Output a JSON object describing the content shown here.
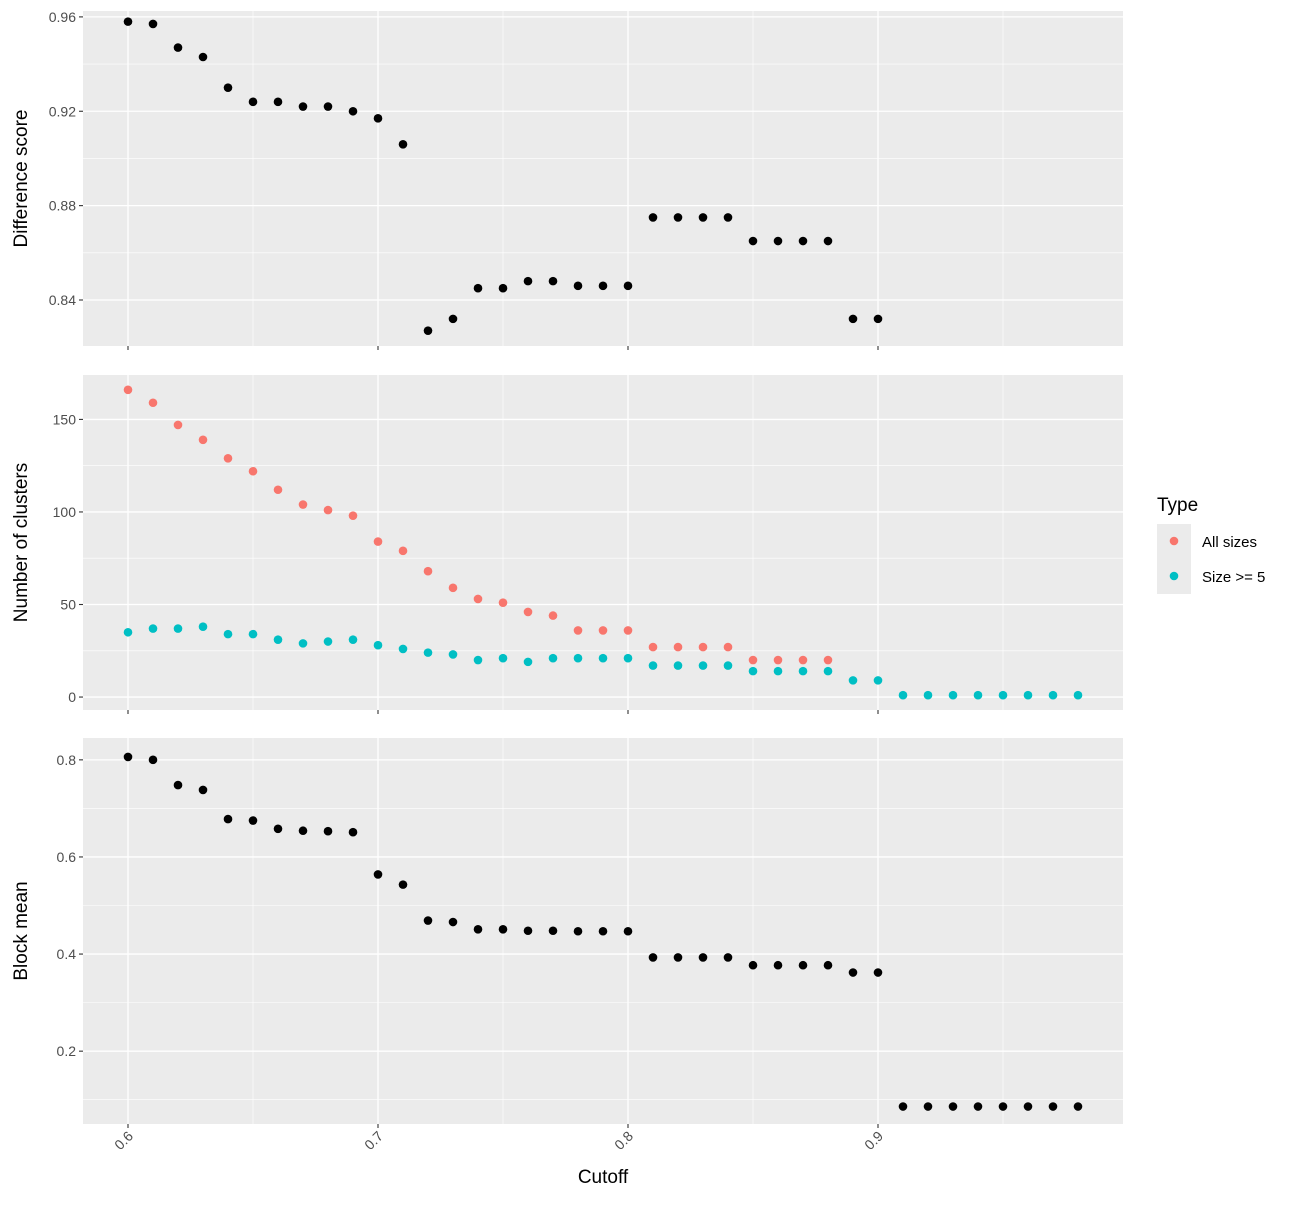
{
  "chart_data": {
    "type": "scatter",
    "xlabel": "Cutoff",
    "x_ticks": [
      "0.6",
      "0.7",
      "0.8",
      "0.9"
    ],
    "xlim": [
      0.582,
      0.998
    ],
    "legend": {
      "title": "Type",
      "position": "right",
      "entries": [
        {
          "name": "All sizes",
          "color": "#F8766D"
        },
        {
          "name": "Size >= 5",
          "color": "#00BFC4"
        }
      ]
    },
    "panels": [
      {
        "ylabel": "Difference score",
        "ylim": [
          0.8205,
          0.9625
        ],
        "y_ticks": [
          {
            "value": 0.84,
            "label": "0.84"
          },
          {
            "value": 0.88,
            "label": "0.88"
          },
          {
            "value": 0.92,
            "label": "0.92"
          },
          {
            "value": 0.96,
            "label": "0.96"
          }
        ],
        "series": [
          {
            "color": "#000000",
            "x": [
              0.6,
              0.61,
              0.62,
              0.63,
              0.64,
              0.65,
              0.66,
              0.67,
              0.68,
              0.69,
              0.7,
              0.71,
              0.72,
              0.73,
              0.74,
              0.75,
              0.76,
              0.77,
              0.78,
              0.79,
              0.8,
              0.81,
              0.82,
              0.83,
              0.84,
              0.85,
              0.86,
              0.87,
              0.88,
              0.89,
              0.9
            ],
            "y": [
              0.958,
              0.957,
              0.947,
              0.943,
              0.93,
              0.924,
              0.924,
              0.922,
              0.922,
              0.92,
              0.917,
              0.906,
              0.827,
              0.832,
              0.845,
              0.845,
              0.848,
              0.848,
              0.846,
              0.846,
              0.846,
              0.875,
              0.875,
              0.875,
              0.875,
              0.865,
              0.865,
              0.865,
              0.865,
              0.832,
              0.832
            ]
          }
        ]
      },
      {
        "ylabel": "Number of clusters",
        "ylim": [
          -7,
          174
        ],
        "y_ticks": [
          {
            "value": 0,
            "label": "0"
          },
          {
            "value": 50,
            "label": "50"
          },
          {
            "value": 100,
            "label": "100"
          },
          {
            "value": 150,
            "label": "150"
          }
        ],
        "series": [
          {
            "name": "All sizes",
            "color": "#F8766D",
            "x": [
              0.6,
              0.61,
              0.62,
              0.63,
              0.64,
              0.65,
              0.66,
              0.67,
              0.68,
              0.69,
              0.7,
              0.71,
              0.72,
              0.73,
              0.74,
              0.75,
              0.76,
              0.77,
              0.78,
              0.79,
              0.8,
              0.81,
              0.82,
              0.83,
              0.84,
              0.85,
              0.86,
              0.87,
              0.88
            ],
            "y": [
              166,
              159,
              147,
              139,
              129,
              122,
              112,
              104,
              101,
              98,
              84,
              79,
              68,
              59,
              53,
              51,
              46,
              44,
              36,
              36,
              36,
              27,
              27,
              27,
              27,
              20,
              20,
              20,
              20
            ]
          },
          {
            "name": "Size >= 5",
            "color": "#00BFC4",
            "x": [
              0.6,
              0.61,
              0.62,
              0.63,
              0.64,
              0.65,
              0.66,
              0.67,
              0.68,
              0.69,
              0.7,
              0.71,
              0.72,
              0.73,
              0.74,
              0.75,
              0.76,
              0.77,
              0.78,
              0.79,
              0.8,
              0.81,
              0.82,
              0.83,
              0.84,
              0.85,
              0.86,
              0.87,
              0.88,
              0.89,
              0.9,
              0.91,
              0.92,
              0.93,
              0.94,
              0.95,
              0.96,
              0.97,
              0.98
            ],
            "y": [
              35,
              37,
              37,
              38,
              34,
              34,
              31,
              29,
              30,
              31,
              28,
              26,
              24,
              23,
              20,
              21,
              19,
              21,
              21,
              21,
              21,
              17,
              17,
              17,
              17,
              14,
              14,
              14,
              14,
              9,
              9,
              1,
              1,
              1,
              1,
              1,
              1,
              1,
              1
            ]
          }
        ]
      },
      {
        "ylabel": "Block mean",
        "ylim": [
          0.05,
          0.845
        ],
        "y_ticks": [
          {
            "value": 0.2,
            "label": "0.2"
          },
          {
            "value": 0.4,
            "label": "0.4"
          },
          {
            "value": 0.6,
            "label": "0.6"
          },
          {
            "value": 0.8,
            "label": "0.8"
          }
        ],
        "series": [
          {
            "color": "#000000",
            "x": [
              0.6,
              0.61,
              0.62,
              0.63,
              0.64,
              0.65,
              0.66,
              0.67,
              0.68,
              0.69,
              0.7,
              0.71,
              0.72,
              0.73,
              0.74,
              0.75,
              0.76,
              0.77,
              0.78,
              0.79,
              0.8,
              0.81,
              0.82,
              0.83,
              0.84,
              0.85,
              0.86,
              0.87,
              0.88,
              0.89,
              0.9,
              0.91,
              0.92,
              0.93,
              0.94,
              0.95,
              0.96,
              0.97,
              0.98
            ],
            "y": [
              0.806,
              0.8,
              0.748,
              0.738,
              0.678,
              0.675,
              0.658,
              0.654,
              0.653,
              0.651,
              0.564,
              0.543,
              0.469,
              0.466,
              0.451,
              0.451,
              0.448,
              0.448,
              0.447,
              0.447,
              0.447,
              0.393,
              0.393,
              0.393,
              0.393,
              0.377,
              0.377,
              0.377,
              0.377,
              0.362,
              0.362,
              0.086,
              0.086,
              0.086,
              0.086,
              0.086,
              0.086,
              0.086,
              0.086
            ]
          }
        ]
      }
    ]
  }
}
